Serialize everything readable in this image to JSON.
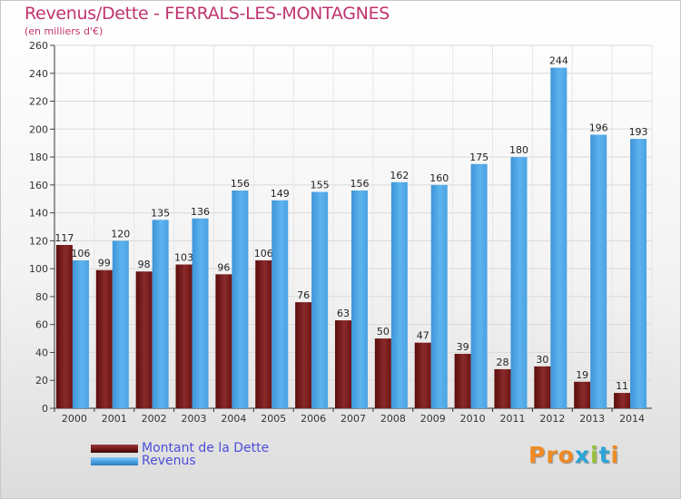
{
  "chart_data": {
    "type": "bar",
    "title": "Revenus/Dette - FERRALS-LES-MONTAGNES",
    "subtitle": "(en milliers d'€)",
    "categories": [
      "2000",
      "2001",
      "2002",
      "2003",
      "2004",
      "2005",
      "2006",
      "2007",
      "2008",
      "2009",
      "2010",
      "2011",
      "2012",
      "2013",
      "2014"
    ],
    "series": [
      {
        "name": "Montant de la Dette",
        "color": "#7a1a1a",
        "values": [
          117,
          99,
          98,
          103,
          96,
          106,
          76,
          63,
          50,
          47,
          39,
          28,
          30,
          19,
          11
        ]
      },
      {
        "name": "Revenus",
        "color": "#4aa3e6",
        "values": [
          106,
          120,
          135,
          136,
          156,
          149,
          155,
          156,
          162,
          160,
          175,
          180,
          244,
          196,
          193
        ]
      }
    ],
    "ylim": [
      0,
      260
    ],
    "yticks": [
      0,
      20,
      40,
      60,
      80,
      100,
      120,
      140,
      160,
      180,
      200,
      220,
      240,
      260
    ],
    "grid": true,
    "legend_position": "bottom-left"
  },
  "logo": {
    "text": "Proxiti",
    "colors": [
      "#f08a24",
      "#f08a24",
      "#f08a24",
      "#2aa6d8",
      "#9bc23b",
      "#2aa6d8",
      "#f08a24"
    ]
  }
}
